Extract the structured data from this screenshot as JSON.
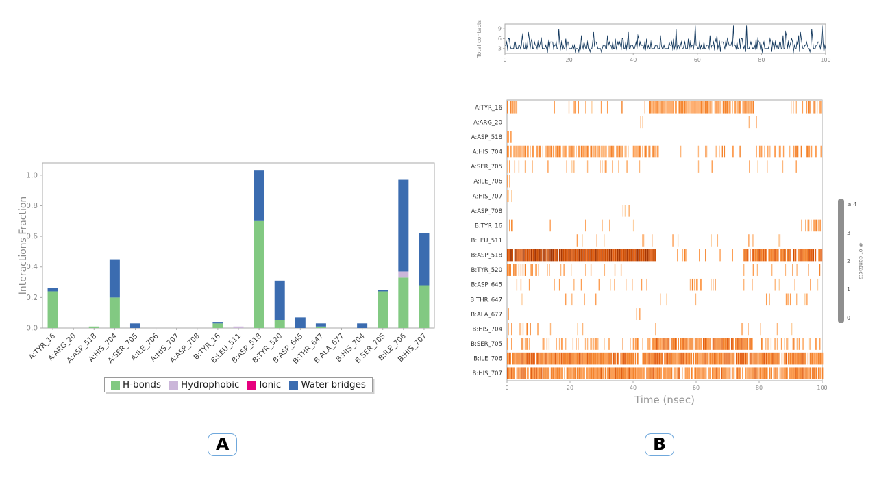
{
  "panel_labels": {
    "a": "A",
    "b": "B"
  },
  "chart_data": [
    {
      "id": "interactions_fraction",
      "type": "bar",
      "stacked": true,
      "title": "",
      "xlabel": "",
      "ylabel": "Interactions Fraction",
      "ylim": [
        0,
        1.08
      ],
      "yticks": [
        0.0,
        0.2,
        0.4,
        0.6,
        0.8,
        1.0
      ],
      "legend_position": "bottom",
      "categories": [
        "A:TYR_16",
        "A:ARG_20",
        "A:ASP_518",
        "A:HIS_704",
        "A:SER_705",
        "A:ILE_706",
        "A:HIS_707",
        "A:ASP_708",
        "B:TYR_16",
        "B:LEU_511",
        "B:ASP_518",
        "B:TYR_520",
        "B:ASP_645",
        "B:THR_647",
        "B:ALA_677",
        "B:HIS_704",
        "B:SER_705",
        "B:ILE_706",
        "B:HIS_707"
      ],
      "series": [
        {
          "name": "H-bonds",
          "color": "#82c982",
          "values": [
            0.24,
            0,
            0.01,
            0.2,
            0,
            0,
            0,
            0,
            0.03,
            0,
            0.7,
            0.05,
            0,
            0.01,
            0,
            0,
            0.24,
            0.33,
            0.28
          ]
        },
        {
          "name": "Hydrophobic",
          "color": "#cbb6d9",
          "values": [
            0,
            0,
            0,
            0,
            0,
            0,
            0,
            0,
            0,
            0.01,
            0,
            0,
            0,
            0,
            0,
            0,
            0,
            0.04,
            0
          ]
        },
        {
          "name": "Ionic",
          "color": "#e6007e",
          "values": [
            0,
            0,
            0,
            0,
            0,
            0,
            0,
            0,
            0,
            0,
            0,
            0,
            0,
            0,
            0,
            0,
            0,
            0,
            0
          ]
        },
        {
          "name": "Water bridges",
          "color": "#3b6cb0",
          "values": [
            0.02,
            0,
            0,
            0.25,
            0.03,
            0,
            0,
            0,
            0.01,
            0,
            0.33,
            0.26,
            0.07,
            0.02,
            0,
            0.03,
            0.01,
            0.6,
            0.34
          ]
        }
      ]
    },
    {
      "id": "total_contacts",
      "type": "line",
      "ylabel": "Total contacts",
      "yticks": [
        3,
        6,
        9
      ],
      "xticks": [
        0,
        20,
        40,
        60,
        80,
        100
      ],
      "xlim": [
        0,
        100
      ],
      "ylim": [
        1.5,
        10.5
      ],
      "color": "#14395e",
      "n_points": 370,
      "seed": 13,
      "value_range": [
        2,
        10
      ],
      "typical_value": 4
    },
    {
      "id": "contacts_heatmap",
      "type": "heatmap",
      "xlabel": "Time (nsec)",
      "xticks": [
        0,
        20,
        40,
        60,
        80,
        100
      ],
      "xlim": [
        0,
        100
      ],
      "seed": 99,
      "palette": [
        "#feeedd",
        "#fde2c4",
        "#fdd0a2",
        "#fdb77c",
        "#fd9e53",
        "#f4832c",
        "#e36014",
        "#cc4c02",
        "#a63603"
      ],
      "rows": [
        {
          "label": "A:TYR_16",
          "segments": [
            [
              0,
              3,
              0.5,
              0.5
            ],
            [
              5,
              45,
              0.1,
              0.45
            ],
            [
              45,
              78,
              0.88,
              0.5
            ],
            [
              90,
              100,
              0.45,
              0.5
            ]
          ]
        },
        {
          "label": "A:ARG_20",
          "segments": [
            [
              36,
              44,
              0.07,
              0.4
            ],
            [
              76,
              79,
              0.1,
              0.4
            ]
          ]
        },
        {
          "label": "A:ASP_518",
          "segments": [
            [
              0,
              1.5,
              0.4,
              0.45
            ]
          ]
        },
        {
          "label": "A:HIS_704",
          "segments": [
            [
              0,
              48,
              0.75,
              0.5
            ],
            [
              53,
              75,
              0.12,
              0.45
            ],
            [
              79,
              100,
              0.4,
              0.5
            ]
          ]
        },
        {
          "label": "A:SER_705",
          "segments": [
            [
              0,
              45,
              0.14,
              0.42
            ],
            [
              55,
              100,
              0.07,
              0.4
            ]
          ]
        },
        {
          "label": "A:ILE_706",
          "segments": [
            [
              0,
              1.5,
              0.4,
              0.42
            ]
          ]
        },
        {
          "label": "A:HIS_707",
          "segments": [
            [
              0,
              1.5,
              0.4,
              0.42
            ]
          ]
        },
        {
          "label": "A:ASP_708",
          "segments": [
            [
              36,
              39,
              0.25,
              0.4
            ]
          ]
        },
        {
          "label": "B:TYR_16",
          "segments": [
            [
              0,
              2.5,
              0.7,
              0.5
            ],
            [
              5,
              40,
              0.06,
              0.4
            ],
            [
              60,
              62,
              0.1,
              0.4
            ],
            [
              93,
              100,
              0.4,
              0.5
            ]
          ]
        },
        {
          "label": "B:LEU_511",
          "segments": [
            [
              0,
              90,
              0.05,
              0.4
            ]
          ]
        },
        {
          "label": "B:ASP_518",
          "segments": [
            [
              0,
              47,
              0.97,
              0.88
            ],
            [
              48,
              74,
              0.05,
              0.5
            ],
            [
              75,
              100,
              0.85,
              0.7
            ]
          ]
        },
        {
          "label": "B:TYR_520",
          "segments": [
            [
              0,
              10,
              0.5,
              0.5
            ],
            [
              10,
              45,
              0.1,
              0.42
            ],
            [
              60,
              63,
              0.15,
              0.42
            ],
            [
              75,
              100,
              0.18,
              0.45
            ]
          ]
        },
        {
          "label": "B:ASP_645",
          "segments": [
            [
              0,
              45,
              0.1,
              0.42
            ],
            [
              58,
              66,
              0.3,
              0.45
            ],
            [
              75,
              100,
              0.07,
              0.4
            ]
          ]
        },
        {
          "label": "B:THR_647",
          "segments": [
            [
              0,
              100,
              0.05,
              0.4
            ]
          ]
        },
        {
          "label": "B:ALA_677",
          "segments": [
            [
              0,
              1,
              0.4,
              0.4
            ],
            [
              40,
              42,
              0.2,
              0.4
            ]
          ]
        },
        {
          "label": "B:HIS_704",
          "segments": [
            [
              0,
              10,
              0.3,
              0.45
            ],
            [
              12,
              100,
              0.035,
              0.4
            ]
          ]
        },
        {
          "label": "B:SER_705",
          "segments": [
            [
              0,
              46,
              0.25,
              0.45
            ],
            [
              46,
              78,
              0.9,
              0.6
            ],
            [
              80,
              100,
              0.3,
              0.45
            ]
          ]
        },
        {
          "label": "B:ILE_706",
          "segments": [
            [
              0,
              100,
              0.92,
              0.62
            ]
          ]
        },
        {
          "label": "B:HIS_707",
          "segments": [
            [
              0,
              100,
              0.85,
              0.58
            ]
          ]
        }
      ],
      "colorbar": {
        "labels": [
          "≥ 4",
          "3",
          "2",
          "1",
          "0"
        ],
        "title": "# of contacts",
        "color": "#8f8f8f"
      }
    }
  ]
}
